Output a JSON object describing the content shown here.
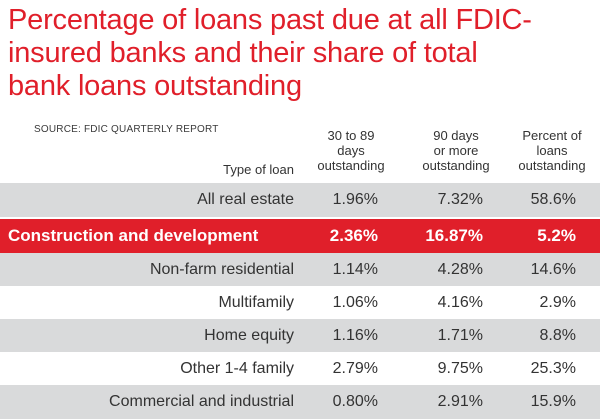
{
  "title_lines": [
    "Percentage of loans past due at all FDIC-",
    "insured banks and their share of total",
    "bank loans outstanding"
  ],
  "source": "SOURCE: FDIC QUARTERLY REPORT",
  "colors": {
    "accent": "#e01f2a",
    "row_shade": "#d9dadb",
    "text": "#333333"
  },
  "chart_data": {
    "type": "table",
    "columns": [
      {
        "key": "type",
        "label_lines": [
          "Type of loan"
        ]
      },
      {
        "key": "d30_89",
        "label_lines": [
          "30 to 89",
          "days",
          "outstanding"
        ]
      },
      {
        "key": "d90",
        "label_lines": [
          "90 days",
          "or more",
          "outstanding"
        ]
      },
      {
        "key": "share",
        "label_lines": [
          "Percent of",
          "loans",
          "outstanding"
        ]
      }
    ],
    "rows": [
      {
        "type": "All real estate",
        "d30_89": "1.96%",
        "d90": "7.32%",
        "share": "58.6%",
        "highlight": false
      },
      {
        "type": "Construction and development",
        "d30_89": "2.36%",
        "d90": "16.87%",
        "share": "5.2%",
        "highlight": true
      },
      {
        "type": "Non-farm residential",
        "d30_89": "1.14%",
        "d90": "4.28%",
        "share": "14.6%",
        "highlight": false
      },
      {
        "type": "Multifamily",
        "d30_89": "1.06%",
        "d90": "4.16%",
        "share": "2.9%",
        "highlight": false
      },
      {
        "type": "Home equity",
        "d30_89": "1.16%",
        "d90": "1.71%",
        "share": "8.8%",
        "highlight": false
      },
      {
        "type": "Other 1-4 family",
        "d30_89": "2.79%",
        "d90": "9.75%",
        "share": "25.3%",
        "highlight": false
      },
      {
        "type": "Commercial and industrial",
        "d30_89": "0.80%",
        "d90": "2.91%",
        "share": "15.9%",
        "highlight": false
      }
    ]
  }
}
